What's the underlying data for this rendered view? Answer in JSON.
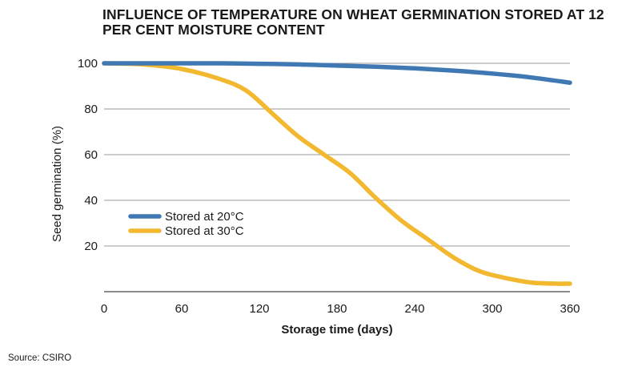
{
  "chart_data": {
    "type": "line",
    "title": "INFLUENCE OF TEMPERATURE ON WHEAT GERMINATION STORED AT 12 PER CENT MOISTURE CONTENT",
    "xlabel": "Storage time (days)",
    "ylabel": "Seed germination (%)",
    "xlim": [
      0,
      360
    ],
    "ylim": [
      0,
      100
    ],
    "xticks": [
      0,
      60,
      120,
      180,
      240,
      300,
      360
    ],
    "yticks": [
      20,
      40,
      60,
      80,
      100
    ],
    "grid": "horizontal",
    "legend": "bottom-left",
    "series": [
      {
        "name": "Stored at 20°C",
        "color": "#3f78b2",
        "x": [
          0,
          30,
          60,
          90,
          120,
          150,
          180,
          210,
          240,
          270,
          300,
          330,
          360
        ],
        "y": [
          100,
          100,
          100,
          100,
          99.8,
          99.5,
          99,
          98.5,
          97.8,
          96.8,
          95.5,
          93.8,
          91.5
        ]
      },
      {
        "name": "Stored at 30°C",
        "color": "#f2b830",
        "x": [
          0,
          30,
          60,
          90,
          110,
          130,
          150,
          170,
          190,
          210,
          230,
          250,
          270,
          290,
          310,
          330,
          350,
          360
        ],
        "y": [
          100,
          99.5,
          97.5,
          93,
          88,
          78,
          68,
          60,
          52,
          41,
          31,
          23,
          15,
          9,
          6,
          4,
          3.5,
          3.5
        ]
      }
    ]
  },
  "source": "Source: CSIRO"
}
